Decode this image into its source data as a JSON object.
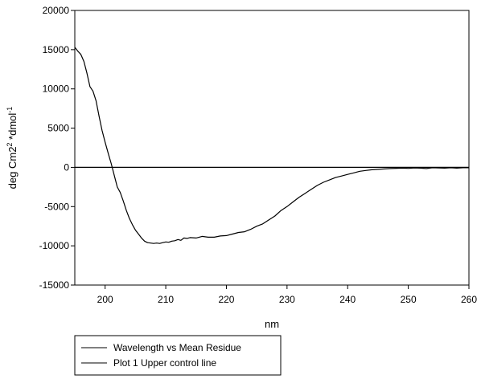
{
  "chart_data": {
    "type": "line",
    "xlabel": "nm",
    "ylabel": "deg Cm2",
    "ylabel_sup": "2",
    "ylabel_mid": " *dmol",
    "ylabel_sup2": "-1",
    "xlim": [
      195,
      260
    ],
    "ylim": [
      -15000,
      20000
    ],
    "x_ticks": [
      200,
      210,
      220,
      230,
      240,
      250,
      260
    ],
    "y_ticks": [
      20000,
      15000,
      10000,
      5000,
      0,
      -5000,
      -10000,
      -15000
    ],
    "grid": false,
    "legend_position": "bottom-left, below plot",
    "series": [
      {
        "name": "Wavelength vs Mean Residue",
        "color": "#000000",
        "x": [
          195,
          195.5,
          196,
          196.5,
          197,
          197.5,
          198,
          198.5,
          199,
          199.5,
          200,
          200.5,
          201,
          201.5,
          202,
          202.5,
          203,
          203.5,
          204,
          204.5,
          205,
          205.5,
          206,
          206.5,
          207,
          207.5,
          208,
          208.5,
          209,
          209.5,
          210,
          210.5,
          211,
          211.5,
          212,
          212.5,
          213,
          213.5,
          214,
          215,
          216,
          217,
          218,
          219,
          220,
          221,
          222,
          223,
          224,
          225,
          226,
          227,
          228,
          229,
          230,
          231,
          232,
          233,
          234,
          235,
          236,
          237,
          238,
          239,
          240,
          241,
          242,
          243,
          244,
          245,
          246,
          247,
          248,
          249,
          250,
          251,
          252,
          253,
          254,
          255,
          256,
          257,
          258,
          259,
          260
        ],
        "y": [
          15300,
          14800,
          14400,
          13500,
          12000,
          10300,
          9700,
          8500,
          6500,
          4700,
          3200,
          1800,
          500,
          -1000,
          -2500,
          -3200,
          -4300,
          -5500,
          -6500,
          -7300,
          -8000,
          -8500,
          -9000,
          -9400,
          -9600,
          -9650,
          -9700,
          -9650,
          -9700,
          -9600,
          -9500,
          -9550,
          -9400,
          -9350,
          -9200,
          -9300,
          -9000,
          -9050,
          -8950,
          -9000,
          -8800,
          -8900,
          -8900,
          -8750,
          -8700,
          -8500,
          -8300,
          -8200,
          -7900,
          -7500,
          -7200,
          -6700,
          -6200,
          -5500,
          -5000,
          -4400,
          -3800,
          -3300,
          -2800,
          -2300,
          -1900,
          -1600,
          -1300,
          -1100,
          -900,
          -700,
          -500,
          -400,
          -300,
          -250,
          -200,
          -150,
          -120,
          -100,
          -130,
          -80,
          -100,
          -150,
          -50,
          -80,
          -100,
          -50,
          -100,
          -50,
          -50
        ]
      },
      {
        "name": "Plot 1 Upper control line",
        "color": "#000000",
        "x": [
          195,
          260
        ],
        "y": [
          0,
          0
        ]
      }
    ]
  }
}
